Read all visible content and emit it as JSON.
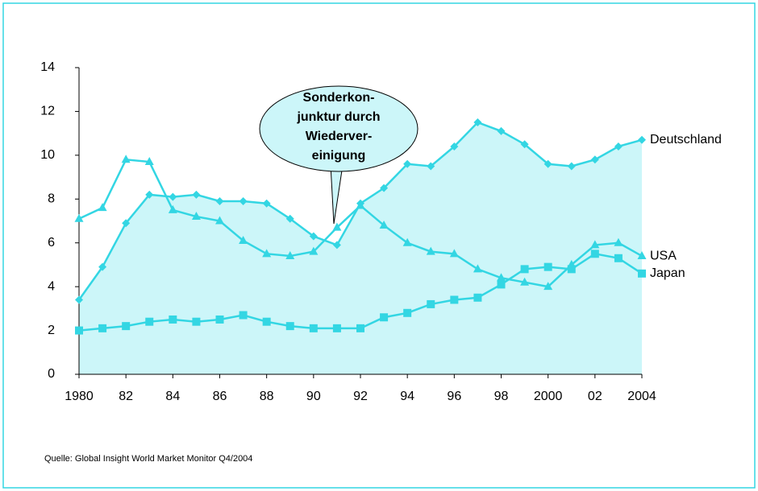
{
  "chart_data": {
    "type": "line",
    "x": [
      1980,
      1981,
      1982,
      1983,
      1984,
      1985,
      1986,
      1987,
      1988,
      1989,
      1990,
      1991,
      1992,
      1993,
      1994,
      1995,
      1996,
      1997,
      1998,
      1999,
      2000,
      2001,
      2002,
      2003,
      2004
    ],
    "xlim": [
      1980,
      2004
    ],
    "xticks": [
      {
        "value": 1980,
        "label": "1980"
      },
      {
        "value": 1982,
        "label": "82"
      },
      {
        "value": 1984,
        "label": "84"
      },
      {
        "value": 1986,
        "label": "86"
      },
      {
        "value": 1988,
        "label": "88"
      },
      {
        "value": 1990,
        "label": "90"
      },
      {
        "value": 1992,
        "label": "92"
      },
      {
        "value": 1994,
        "label": "94"
      },
      {
        "value": 1996,
        "label": "96"
      },
      {
        "value": 1998,
        "label": "98"
      },
      {
        "value": 2000,
        "label": "2000"
      },
      {
        "value": 2002,
        "label": "02"
      },
      {
        "value": 2004,
        "label": "2004"
      }
    ],
    "ylim": [
      0,
      14
    ],
    "yticks": [
      0,
      2,
      4,
      6,
      8,
      10,
      12,
      14
    ],
    "series": [
      {
        "name": "Deutschland",
        "color": "#33d6e3",
        "marker": "diamond",
        "fill": "#ccf6f9",
        "values": [
          3.4,
          4.9,
          6.9,
          8.2,
          8.1,
          8.2,
          7.9,
          7.9,
          7.8,
          7.1,
          6.3,
          5.9,
          7.8,
          8.5,
          9.6,
          9.5,
          10.4,
          11.5,
          11.1,
          10.5,
          9.6,
          9.5,
          9.8,
          10.4,
          10.7
        ]
      },
      {
        "name": "USA",
        "color": "#33d6e3",
        "marker": "triangle",
        "values": [
          7.1,
          7.6,
          9.8,
          9.7,
          7.5,
          7.2,
          7.0,
          6.1,
          5.5,
          5.4,
          5.6,
          6.7,
          7.7,
          6.8,
          6.0,
          5.6,
          5.5,
          4.8,
          4.4,
          4.2,
          4.0,
          5.0,
          5.9,
          6.0,
          5.4
        ]
      },
      {
        "name": "Japan",
        "color": "#33d6e3",
        "marker": "square",
        "values": [
          2.0,
          2.1,
          2.2,
          2.4,
          2.5,
          2.4,
          2.5,
          2.7,
          2.4,
          2.2,
          2.1,
          2.1,
          2.1,
          2.6,
          2.8,
          3.2,
          3.4,
          3.5,
          4.1,
          4.8,
          4.9,
          4.8,
          5.5,
          5.3,
          4.6
        ]
      }
    ],
    "annotation": {
      "lines": [
        "Sonderkon-",
        "junktur durch",
        "Wiederver-",
        "einigung"
      ]
    },
    "source": "Quelle: Global Insight World Market Monitor Q4/2004"
  }
}
